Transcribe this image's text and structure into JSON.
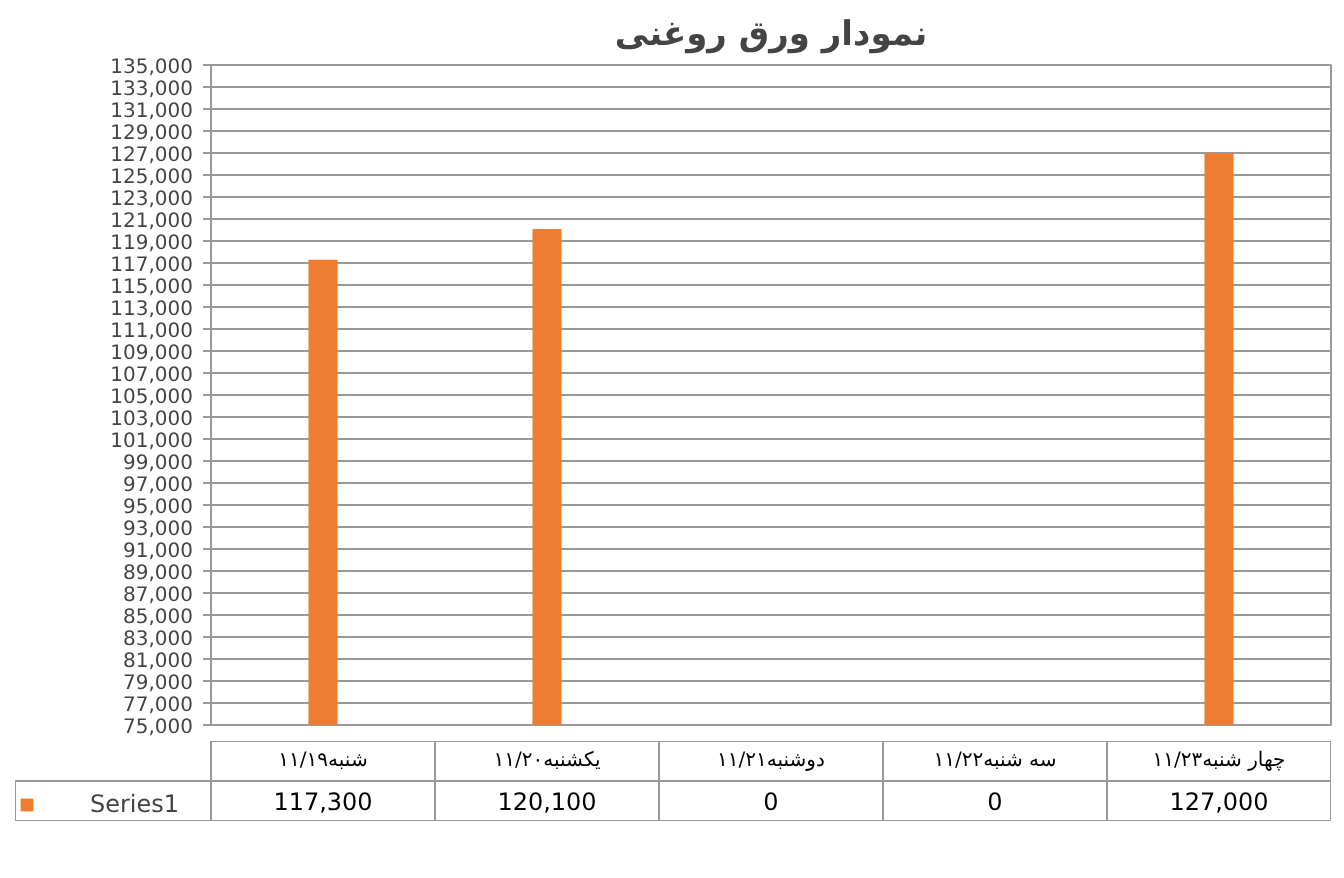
{
  "chart_data": {
    "type": "bar",
    "title": "نمودار ورق روغنی",
    "categories": [
      "شنبه۱۱/۱۹",
      "یکشنبه۱۱/۲۰",
      "دوشنبه۱۱/۲۱",
      "سه شنبه۱۱/۲۲",
      "چهار شنبه۱۱/۲۳"
    ],
    "series": [
      {
        "name": "Series1",
        "color": "#ed7d31",
        "values": [
          117300,
          120100,
          null,
          null,
          127000
        ],
        "value_labels": [
          "117,300",
          "120,100",
          "0",
          "0",
          "127,000"
        ]
      }
    ],
    "ylim": [
      75000,
      135000
    ],
    "yticks": [
      {
        "value": 75000,
        "label": "75,000"
      },
      {
        "value": 77000,
        "label": "77,000"
      },
      {
        "value": 79000,
        "label": "79,000"
      },
      {
        "value": 81000,
        "label": "81,000"
      },
      {
        "value": 83000,
        "label": "83,000"
      },
      {
        "value": 85000,
        "label": "85,000"
      },
      {
        "value": 87000,
        "label": "87,000"
      },
      {
        "value": 89000,
        "label": "89,000"
      },
      {
        "value": 91000,
        "label": "91,000"
      },
      {
        "value": 93000,
        "label": "93,000"
      },
      {
        "value": 95000,
        "label": "95,000"
      },
      {
        "value": 97000,
        "label": "97,000"
      },
      {
        "value": 99000,
        "label": "99,000"
      },
      {
        "value": 101000,
        "label": "101,000"
      },
      {
        "value": 103000,
        "label": "103,000"
      },
      {
        "value": 105000,
        "label": "105,000"
      },
      {
        "value": 107000,
        "label": "107,000"
      },
      {
        "value": 109000,
        "label": "109,000"
      },
      {
        "value": 111000,
        "label": "111,000"
      },
      {
        "value": 113000,
        "label": "113,000"
      },
      {
        "value": 115000,
        "label": "115,000"
      },
      {
        "value": 117000,
        "label": "117,000"
      },
      {
        "value": 119000,
        "label": "119,000"
      },
      {
        "value": 121000,
        "label": "121,000"
      },
      {
        "value": 123000,
        "label": "123,000"
      },
      {
        "value": 125000,
        "label": "125,000"
      },
      {
        "value": 127000,
        "label": "127,000"
      },
      {
        "value": 129000,
        "label": "129,000"
      },
      {
        "value": 131000,
        "label": "131,000"
      },
      {
        "value": 133000,
        "label": "133,000"
      },
      {
        "value": 135000,
        "label": "135,000"
      }
    ],
    "grid": "y",
    "legend": "bottom"
  }
}
